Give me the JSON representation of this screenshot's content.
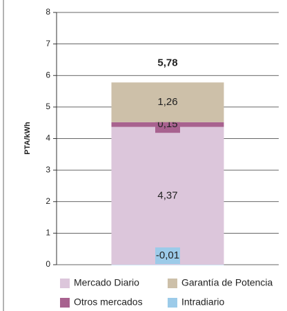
{
  "chart_data": {
    "type": "stacked_bar",
    "y_label": "PTA/kWh",
    "categories": [
      null
    ],
    "series": [
      {
        "name": "Mercado Diario",
        "color": "#dcc6db",
        "values": [
          4.37
        ],
        "value_labels": [
          "4,37"
        ]
      },
      {
        "name": "Otros mercados",
        "color": "#a8628f",
        "values": [
          0.15
        ],
        "value_labels": [
          "0,15"
        ]
      },
      {
        "name": "Garantía de Potencia",
        "color": "#cdc0a9",
        "values": [
          1.26
        ],
        "value_labels": [
          "1,26"
        ]
      },
      {
        "name": "Intradiario",
        "color": "#9ccbe9",
        "values": [
          -0.01
        ],
        "value_labels": [
          "-0,01"
        ]
      }
    ],
    "total_label": "5,78",
    "ylim": [
      0,
      8
    ],
    "yticks": [
      0,
      1,
      2,
      3,
      4,
      5,
      6,
      7,
      8
    ],
    "grid": true
  }
}
